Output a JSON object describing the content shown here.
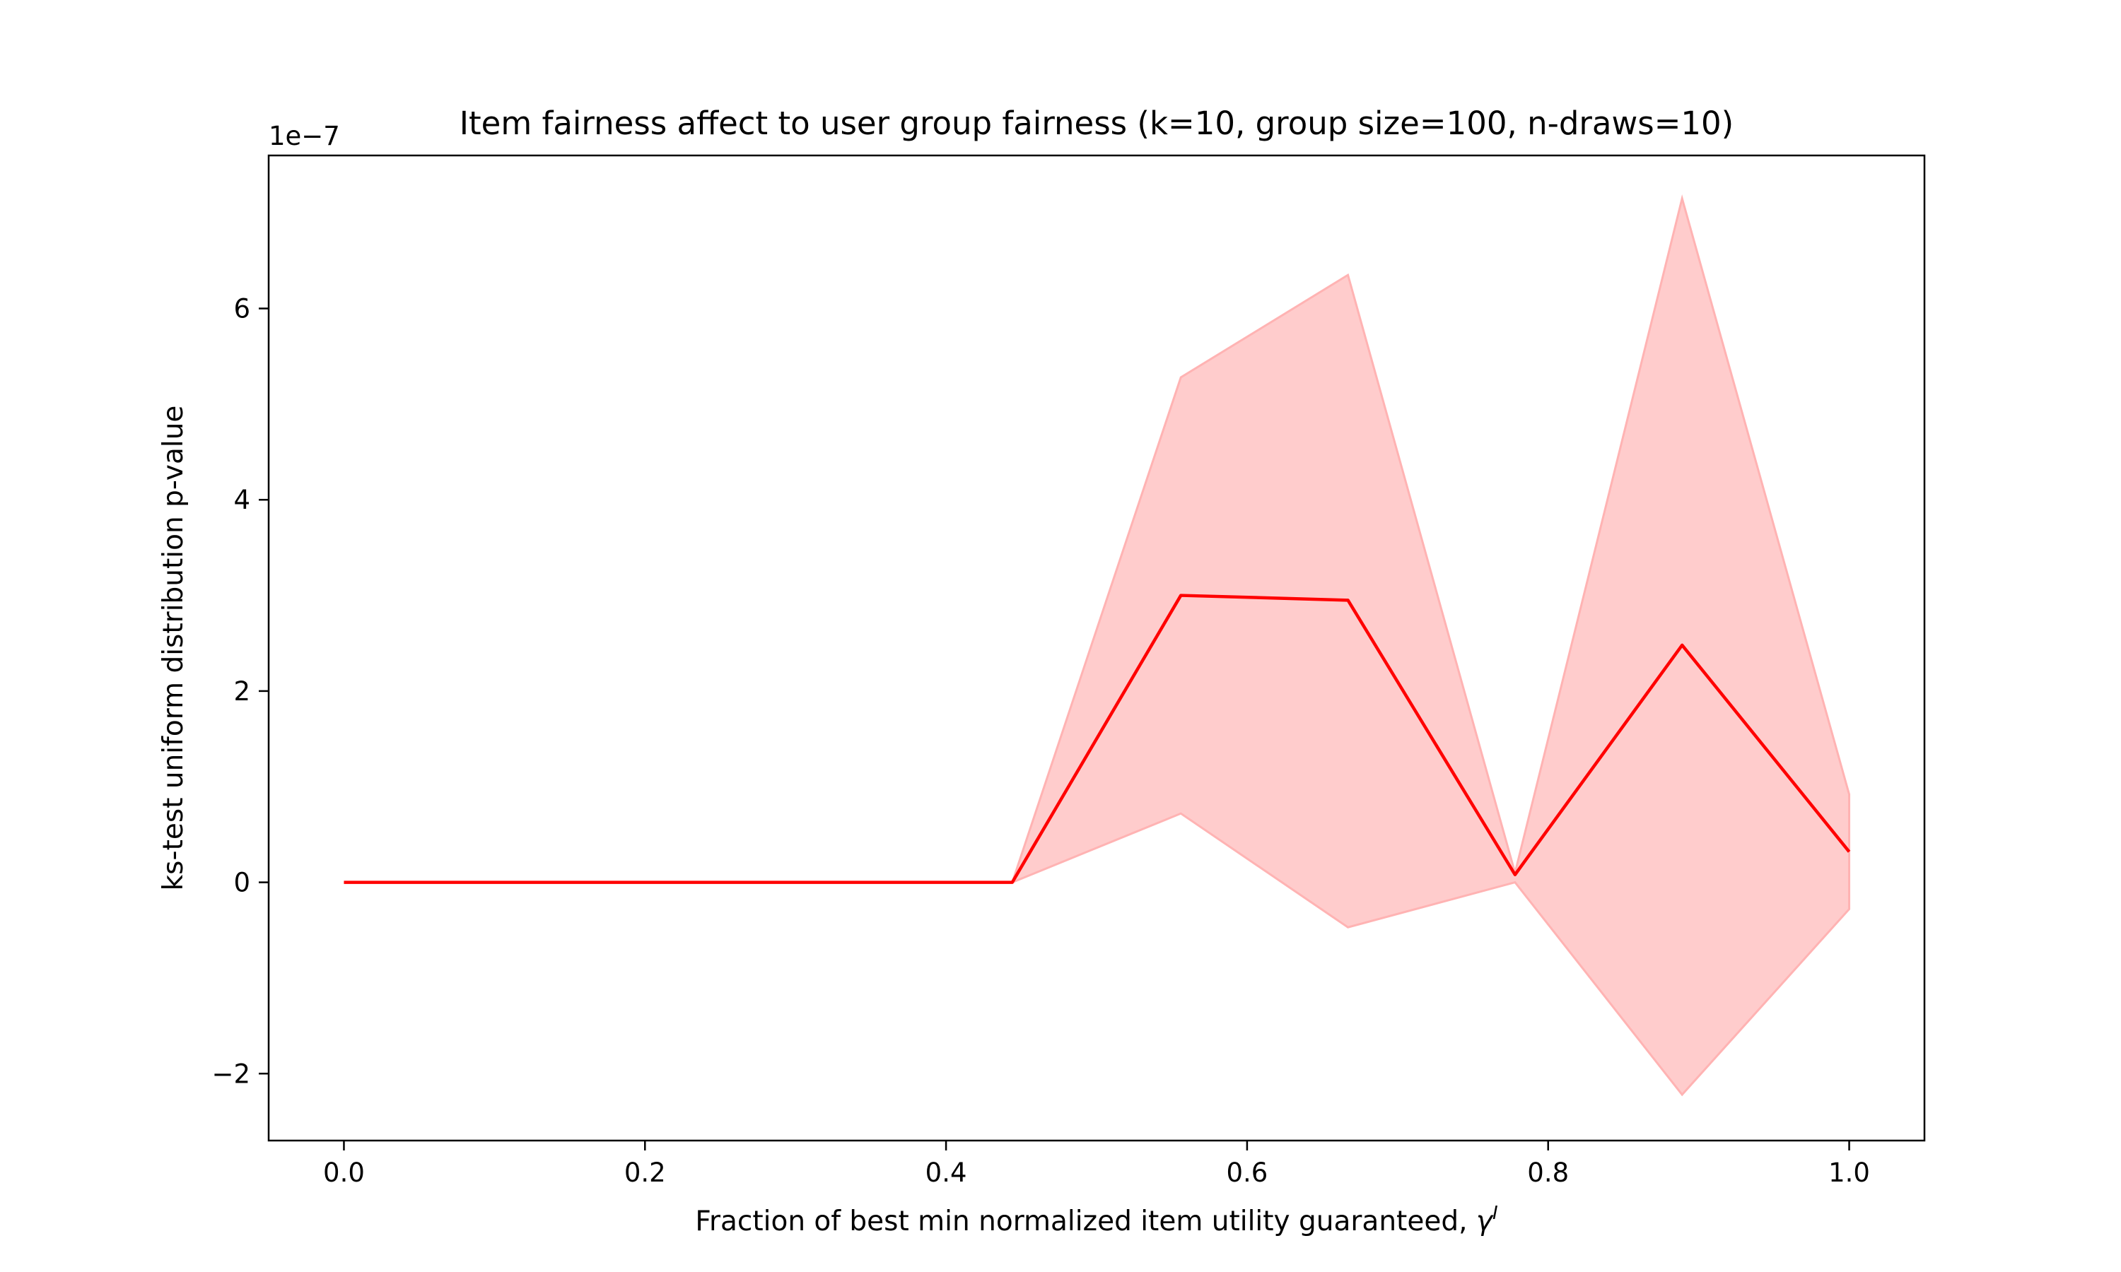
{
  "chart_data": {
    "type": "line",
    "title": "Item fairness affect to user group fairness (k=10, group size=100, n-draws=10)",
    "xlabel": "Fraction of best min normalized item utility guaranteed, ",
    "xlabel_symbol": "γ",
    "xlabel_superscript": "I",
    "ylabel": "ks-test uniform distribution p-value",
    "y_offset_label": "1e−7",
    "y_scale_factor": 1e-07,
    "xlim": [
      -0.05,
      1.05
    ],
    "ylim": [
      -2.7,
      7.6
    ],
    "x_ticks": [
      0.0,
      0.2,
      0.4,
      0.6,
      0.8,
      1.0
    ],
    "x_tick_labels": [
      "0.0",
      "0.2",
      "0.4",
      "0.6",
      "0.8",
      "1.0"
    ],
    "y_ticks": [
      -2,
      0,
      2,
      4,
      6
    ],
    "y_tick_labels": [
      "−2",
      "0",
      "2",
      "4",
      "6"
    ],
    "grid": false,
    "series": [
      {
        "color": "#ff0000",
        "band_color": "#ffcccc",
        "band_edge_color": "#ffb3b3",
        "x": [
          0.0,
          0.111,
          0.222,
          0.333,
          0.444,
          0.556,
          0.667,
          0.778,
          0.889,
          1.0
        ],
        "y": [
          0.0,
          0.0,
          0.0,
          0.0,
          0.0,
          3.0,
          2.95,
          0.08,
          2.48,
          0.32
        ],
        "lower": [
          0.0,
          0.0,
          0.0,
          0.0,
          0.0,
          0.72,
          -0.47,
          0.0,
          -2.22,
          -0.28
        ],
        "upper": [
          0.0,
          0.0,
          0.0,
          0.0,
          0.0,
          5.28,
          6.35,
          0.1,
          7.15,
          0.92
        ]
      }
    ]
  }
}
